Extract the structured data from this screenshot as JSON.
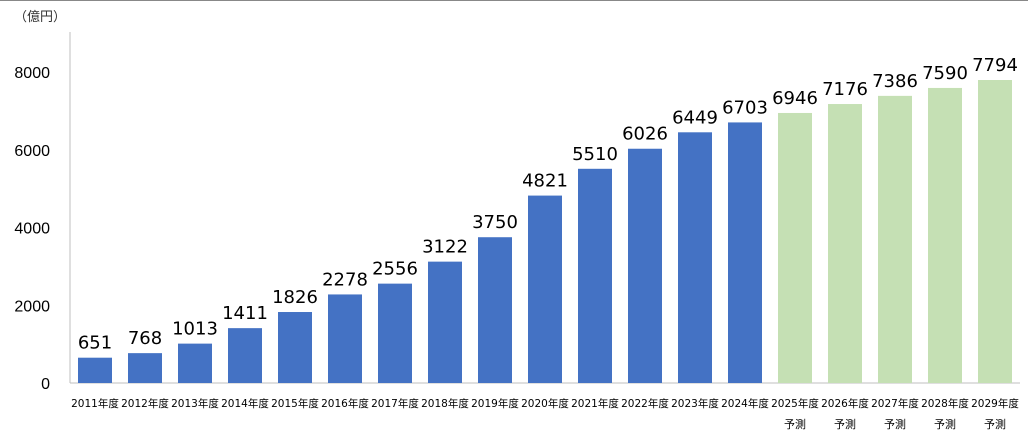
{
  "chart_data": {
    "type": "bar",
    "ylabel": "（億円）",
    "ylim": [
      0,
      8000
    ],
    "y_ticks": [
      0,
      2000,
      4000,
      6000,
      8000
    ],
    "grid": false,
    "categories": [
      {
        "top": "2011年度",
        "bottom": ""
      },
      {
        "top": "2012年度",
        "bottom": ""
      },
      {
        "top": "2013年度",
        "bottom": ""
      },
      {
        "top": "2014年度",
        "bottom": ""
      },
      {
        "top": "2015年度",
        "bottom": ""
      },
      {
        "top": "2016年度",
        "bottom": ""
      },
      {
        "top": "2017年度",
        "bottom": ""
      },
      {
        "top": "2018年度",
        "bottom": ""
      },
      {
        "top": "2019年度",
        "bottom": ""
      },
      {
        "top": "2020年度",
        "bottom": ""
      },
      {
        "top": "2021年度",
        "bottom": ""
      },
      {
        "top": "2022年度",
        "bottom": ""
      },
      {
        "top": "2023年度",
        "bottom": ""
      },
      {
        "top": "2024年度",
        "bottom": ""
      },
      {
        "top": "2025年度",
        "bottom": "予測"
      },
      {
        "top": "2026年度",
        "bottom": "予測"
      },
      {
        "top": "2027年度",
        "bottom": "予測"
      },
      {
        "top": "2028年度",
        "bottom": "予測"
      },
      {
        "top": "2029年度",
        "bottom": "予測"
      }
    ],
    "values": [
      651,
      768,
      1013,
      1411,
      1826,
      2278,
      2556,
      3122,
      3750,
      4821,
      5510,
      6026,
      6449,
      6703,
      6946,
      7176,
      7386,
      7590,
      7794
    ],
    "forecast_from_index": 14,
    "colors": {
      "actual": "#4472c4",
      "forecast": "#c5e0b4",
      "text": "#000000",
      "axis": "#bfbfbf"
    }
  }
}
